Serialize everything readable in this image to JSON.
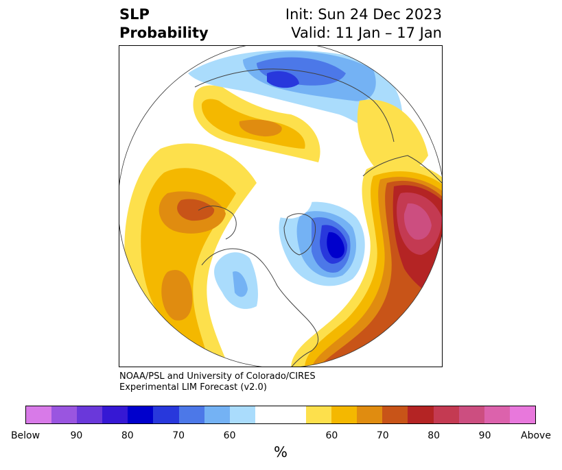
{
  "title": {
    "left_line1": "SLP",
    "left_line2": "Probability",
    "right_line1": "Init: Sun 24 Dec 2023",
    "right_line2": "Valid: 11 Jan – 17 Jan"
  },
  "credit": {
    "line1": "NOAA/PSL and University of Colorado/CIRES",
    "line2": "Experimental LIM Forecast (v2.0)"
  },
  "colorbar": {
    "unit_label": "%",
    "colors": [
      "#d87ae8",
      "#9a55e0",
      "#6a38da",
      "#3618d4",
      "#0000cc",
      "#2838dc",
      "#4c78e8",
      "#74b2f4",
      "#aadcfc",
      "#ffffff",
      "#ffffff",
      "#fde04c",
      "#f4b800",
      "#e08c10",
      "#c85418",
      "#b42424",
      "#c43a52",
      "#cc4e80",
      "#dc62ac",
      "#e878dc"
    ],
    "tick_labels": [
      "Below",
      "90",
      "80",
      "70",
      "60",
      "60",
      "70",
      "80",
      "90",
      "Above"
    ]
  },
  "map": {
    "projection": "north-polar-stereographic",
    "palette": {
      "above_60": "#fde04c",
      "above_65": "#f4b800",
      "above_70": "#e08c10",
      "above_75": "#c85418",
      "above_80": "#b42424",
      "above_85": "#c43a52",
      "above_90": "#cc4e80",
      "below_60": "#aadcfc",
      "below_65": "#74b2f4",
      "below_70": "#4c78e8",
      "below_75": "#2838dc",
      "below_80": "#0000cc",
      "coast": "#404040"
    }
  }
}
